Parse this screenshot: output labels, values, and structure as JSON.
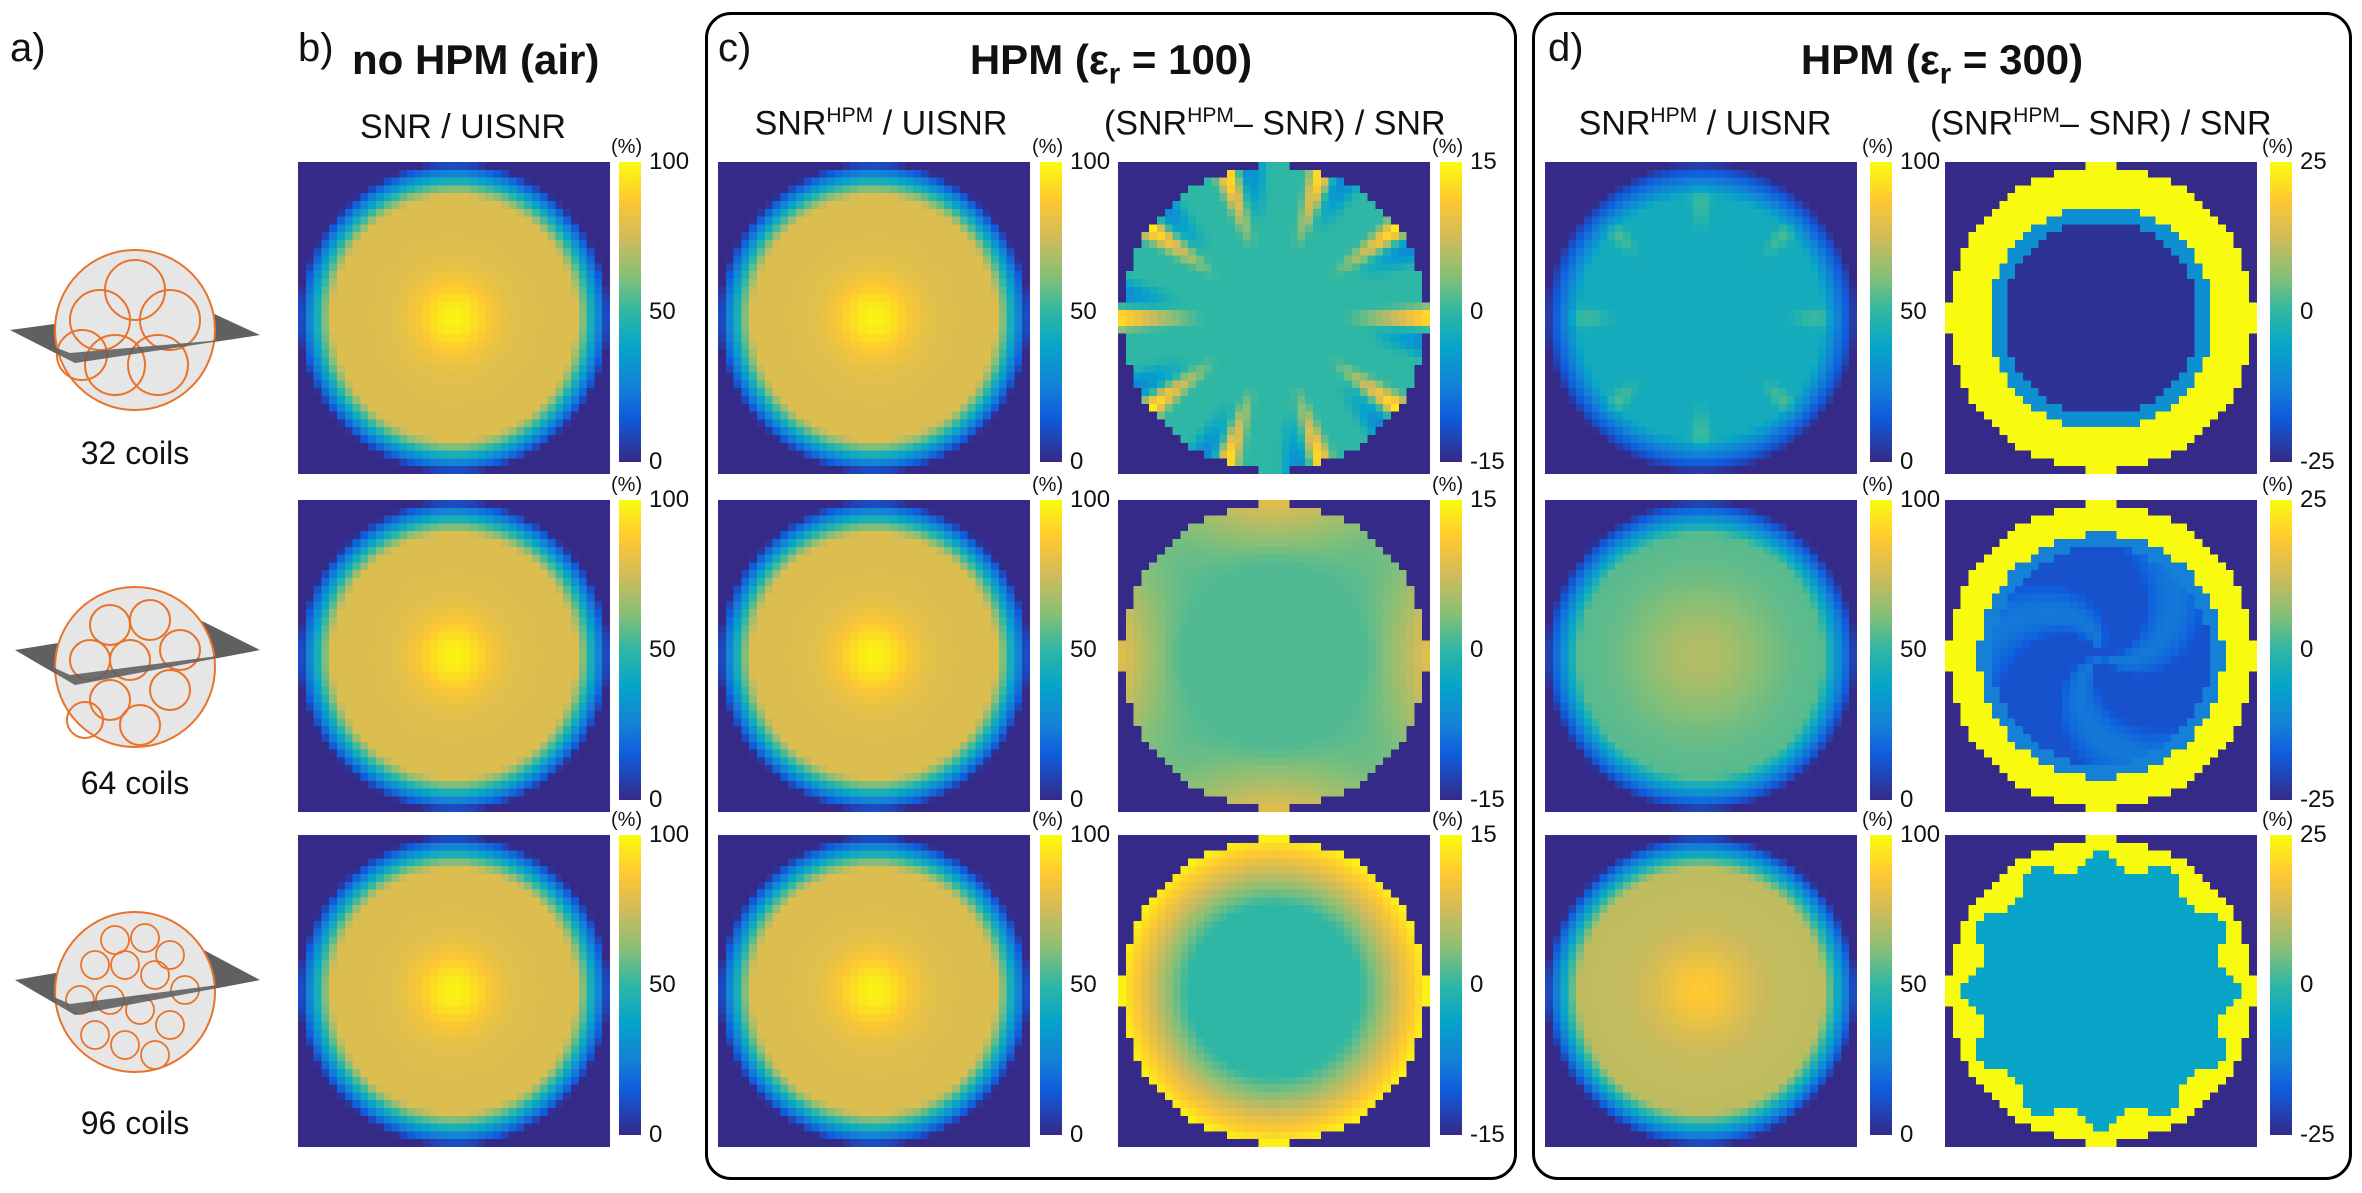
{
  "panel_labels": {
    "a": "a)",
    "b": "b)",
    "c": "c)",
    "d": "d)"
  },
  "sections": {
    "b": {
      "title": "no HPM (air)"
    },
    "c": {
      "title_prefix": "HPM (ε",
      "title_sub": "r",
      "title_suffix": " = 100)"
    },
    "d": {
      "title_prefix": "HPM (ε",
      "title_sub": "r",
      "title_suffix": " = 300)"
    }
  },
  "column_headers": {
    "snr": "SNR / UISNR",
    "hpm_ratio": {
      "pre": "SNR",
      "sup": "HPM",
      "post": " / UISNR"
    },
    "hpm_diff": {
      "pre": "(SNR",
      "sup": "HPM",
      "post": "– SNR) / SNR"
    }
  },
  "units": {
    "percent": "(%)"
  },
  "coil_labels": [
    "32 coils",
    "64 coils",
    "96 coils"
  ],
  "colorbars": {
    "snr_ticks": [
      "100",
      "50",
      "0"
    ],
    "diff100_ticks": [
      "15",
      "0",
      "-15"
    ],
    "diff300_ticks": [
      "25",
      "0",
      "-25"
    ]
  },
  "colors": {
    "background_map": "#352a87",
    "coil_orange": "#e8732a",
    "plane_gray": "#606060",
    "sphere_fill": "#e6e6e6"
  }
}
